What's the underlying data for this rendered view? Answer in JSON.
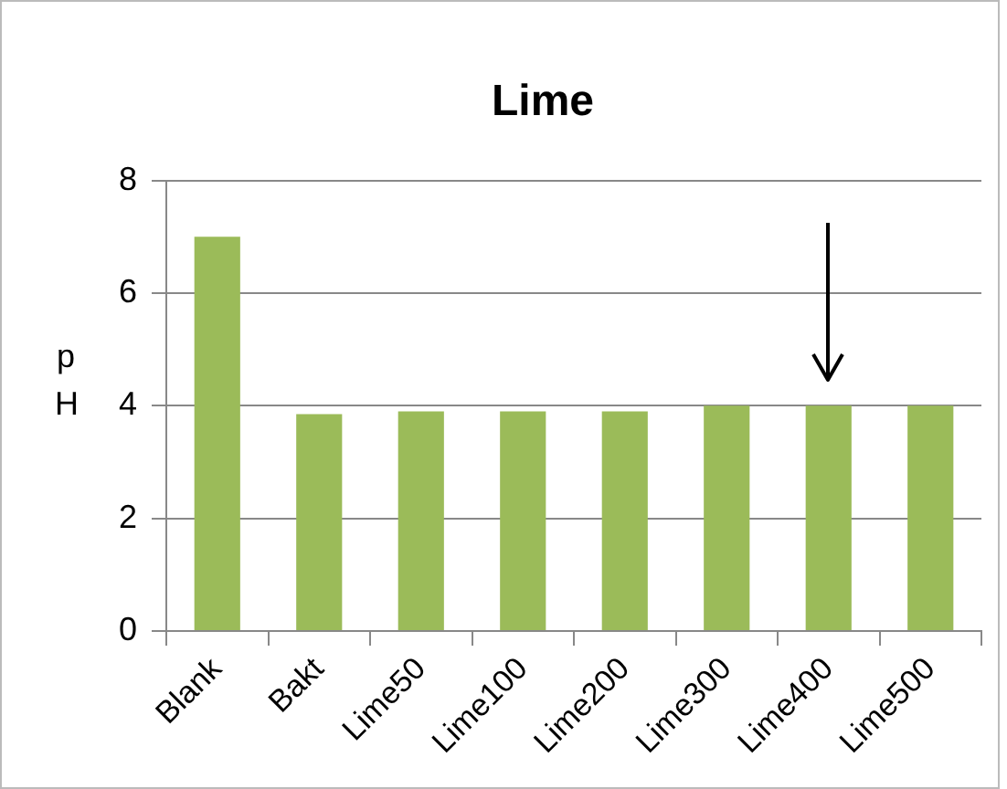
{
  "chart_data": {
    "type": "bar",
    "title": "Lime",
    "ylabel": "pH",
    "categories": [
      "Blank",
      "Bakt",
      "Lime50",
      "Lime100",
      "Lime200",
      "Lime300",
      "Lime400",
      "Lime500"
    ],
    "values": [
      7,
      3.85,
      3.9,
      3.9,
      3.9,
      4,
      4,
      4
    ],
    "color": "#9bbb59",
    "ylim": [
      0,
      8
    ],
    "yticks": [
      0,
      2,
      4,
      6,
      8
    ],
    "grid": "y",
    "legend": false
  }
}
